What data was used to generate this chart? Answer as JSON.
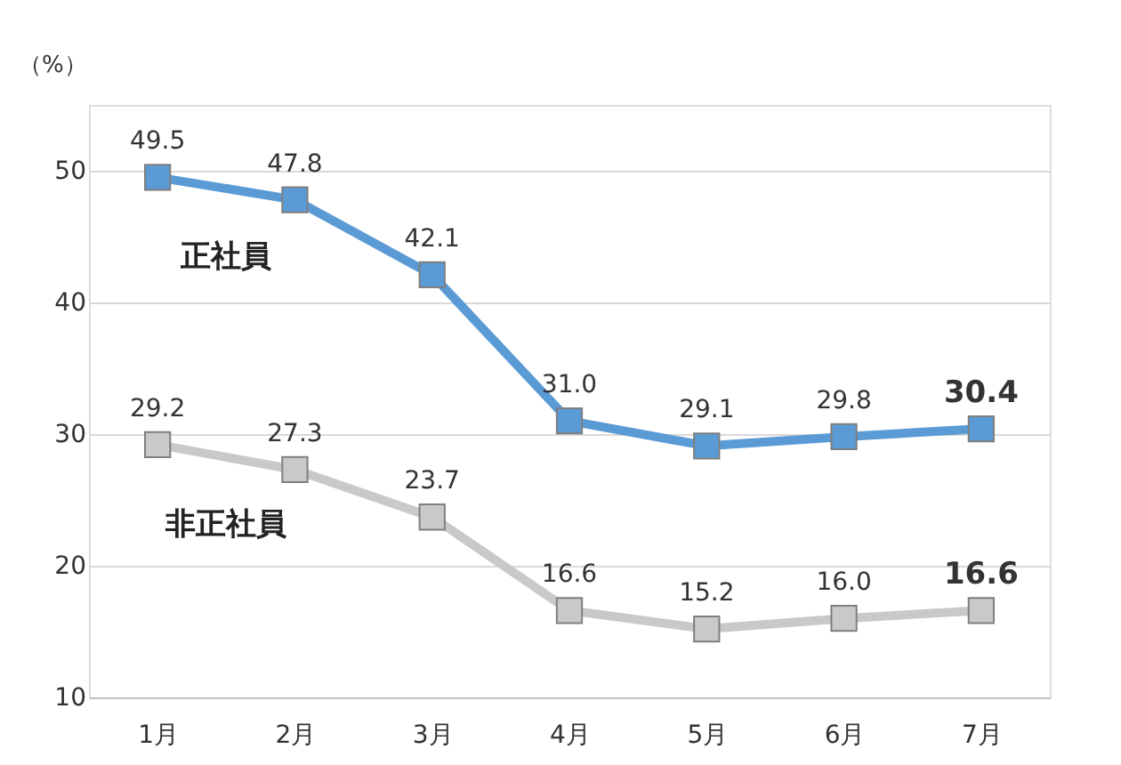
{
  "chart_data": {
    "type": "line",
    "ylabel": "（%）",
    "categories": [
      "1月",
      "2月",
      "3月",
      "4月",
      "5月",
      "6月",
      "7月"
    ],
    "series": [
      {
        "name": "正社員",
        "color": "#5b9bd5",
        "values": [
          49.5,
          47.8,
          42.1,
          31.0,
          29.1,
          29.8,
          30.4
        ],
        "value_labels": [
          "49.5",
          "47.8",
          "42.1",
          "31.0",
          "29.1",
          "29.8",
          "30.4"
        ]
      },
      {
        "name": "非正社員",
        "color": "#c9c9c9",
        "values": [
          29.2,
          27.3,
          23.7,
          16.6,
          15.2,
          16.0,
          16.6
        ],
        "value_labels": [
          "29.2",
          "27.3",
          "23.7",
          "16.6",
          "15.2",
          "16.0",
          "16.6"
        ]
      }
    ],
    "ylim": [
      10,
      55
    ],
    "yticks": [
      10,
      20,
      30,
      40,
      50
    ],
    "grid": "y",
    "legend": false,
    "marker": "square",
    "line_style": "solid"
  }
}
